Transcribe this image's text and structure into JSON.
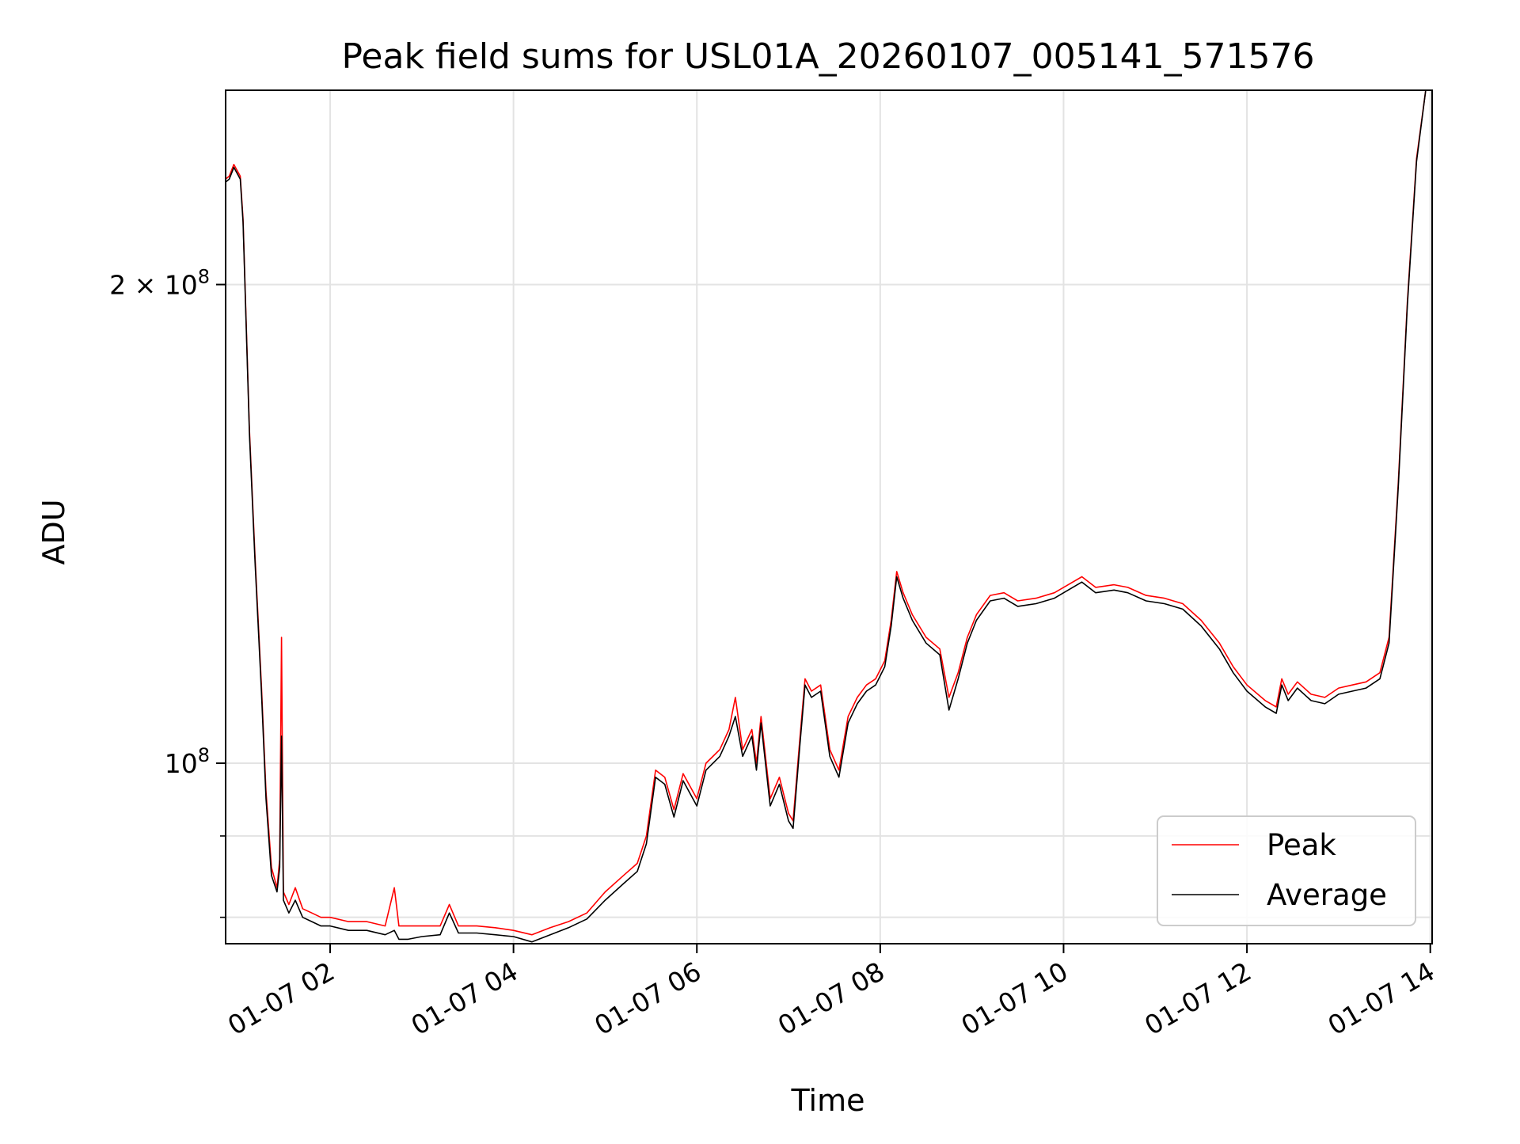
{
  "chart_data": {
    "type": "line",
    "title": "Peak field sums for USL01A_20260107_005141_571576",
    "xlabel": "Time",
    "ylabel": "ADU",
    "y_scale": "log",
    "ylim": [
      77000000.0,
      265000000.0
    ],
    "xlim_hours": [
      0.86,
      14.02
    ],
    "grid": true,
    "legend_position": "lower-right",
    "x_ticks": [
      {
        "hour": 2,
        "label": "01-07 02"
      },
      {
        "hour": 4,
        "label": "01-07 04"
      },
      {
        "hour": 6,
        "label": "01-07 06"
      },
      {
        "hour": 8,
        "label": "01-07 08"
      },
      {
        "hour": 10,
        "label": "01-07 10"
      },
      {
        "hour": 12,
        "label": "01-07 12"
      },
      {
        "hour": 14,
        "label": "01-07 14"
      }
    ],
    "y_major_ticks": [
      {
        "value": 100000000.0,
        "base": "10",
        "exp": "8",
        "prefix": ""
      },
      {
        "value": 200000000.0,
        "base": "10",
        "exp": "8",
        "prefix": "2 × "
      }
    ],
    "y_minor_ticks": [
      80000000.0,
      90000000.0
    ],
    "series": [
      {
        "name": "Peak",
        "color": "#ff0000",
        "points": [
          [
            0.86,
            233000000.0
          ],
          [
            0.9,
            234000000.0
          ],
          [
            0.95,
            238000000.0
          ],
          [
            1.02,
            234000000.0
          ],
          [
            1.05,
            220000000.0
          ],
          [
            1.12,
            162000000.0
          ],
          [
            1.18,
            135000000.0
          ],
          [
            1.25,
            112000000.0
          ],
          [
            1.3,
            96000000.0
          ],
          [
            1.36,
            86000000.0
          ],
          [
            1.42,
            83500000.0
          ],
          [
            1.45,
            87000000.0
          ],
          [
            1.47,
            120000000.0
          ],
          [
            1.49,
            83000000.0
          ],
          [
            1.55,
            81500000.0
          ],
          [
            1.62,
            83500000.0
          ],
          [
            1.7,
            81000000.0
          ],
          [
            1.8,
            80500000.0
          ],
          [
            1.9,
            80000000.0
          ],
          [
            2.0,
            80000000.0
          ],
          [
            2.2,
            79500000.0
          ],
          [
            2.4,
            79500000.0
          ],
          [
            2.6,
            79000000.0
          ],
          [
            2.7,
            83500000.0
          ],
          [
            2.75,
            79000000.0
          ],
          [
            2.85,
            79000000.0
          ],
          [
            3.0,
            79000000.0
          ],
          [
            3.2,
            79000000.0
          ],
          [
            3.3,
            81500000.0
          ],
          [
            3.4,
            79000000.0
          ],
          [
            3.6,
            79000000.0
          ],
          [
            3.8,
            78800000.0
          ],
          [
            4.0,
            78500000.0
          ],
          [
            4.2,
            78000000.0
          ],
          [
            4.4,
            78800000.0
          ],
          [
            4.6,
            79500000.0
          ],
          [
            4.8,
            80500000.0
          ],
          [
            5.0,
            83000000.0
          ],
          [
            5.2,
            85000000.0
          ],
          [
            5.35,
            86500000.0
          ],
          [
            5.45,
            90000000.0
          ],
          [
            5.55,
            99000000.0
          ],
          [
            5.65,
            98000000.0
          ],
          [
            5.75,
            93500000.0
          ],
          [
            5.85,
            98500000.0
          ],
          [
            6.0,
            95000000.0
          ],
          [
            6.1,
            100000000.0
          ],
          [
            6.25,
            102000000.0
          ],
          [
            6.35,
            105000000.0
          ],
          [
            6.42,
            110000000.0
          ],
          [
            6.5,
            102000000.0
          ],
          [
            6.6,
            105000000.0
          ],
          [
            6.65,
            100000000.0
          ],
          [
            6.7,
            107000000.0
          ],
          [
            6.8,
            95000000.0
          ],
          [
            6.9,
            98000000.0
          ],
          [
            7.0,
            93000000.0
          ],
          [
            7.05,
            92000000.0
          ],
          [
            7.12,
            103000000.0
          ],
          [
            7.18,
            113000000.0
          ],
          [
            7.25,
            111000000.0
          ],
          [
            7.35,
            112000000.0
          ],
          [
            7.45,
            102000000.0
          ],
          [
            7.55,
            99000000.0
          ],
          [
            7.65,
            107000000.0
          ],
          [
            7.75,
            110000000.0
          ],
          [
            7.85,
            112000000.0
          ],
          [
            7.95,
            113000000.0
          ],
          [
            8.05,
            116000000.0
          ],
          [
            8.12,
            123000000.0
          ],
          [
            8.18,
            132000000.0
          ],
          [
            8.25,
            128000000.0
          ],
          [
            8.35,
            124000000.0
          ],
          [
            8.5,
            120000000.0
          ],
          [
            8.65,
            118000000.0
          ],
          [
            8.75,
            110000000.0
          ],
          [
            8.85,
            114000000.0
          ],
          [
            8.95,
            120000000.0
          ],
          [
            9.05,
            124000000.0
          ],
          [
            9.2,
            127500000.0
          ],
          [
            9.35,
            128000000.0
          ],
          [
            9.5,
            126500000.0
          ],
          [
            9.7,
            127000000.0
          ],
          [
            9.9,
            128000000.0
          ],
          [
            10.05,
            129500000.0
          ],
          [
            10.2,
            131000000.0
          ],
          [
            10.35,
            129000000.0
          ],
          [
            10.55,
            129500000.0
          ],
          [
            10.7,
            129000000.0
          ],
          [
            10.9,
            127500000.0
          ],
          [
            11.1,
            127000000.0
          ],
          [
            11.3,
            126000000.0
          ],
          [
            11.5,
            123000000.0
          ],
          [
            11.7,
            119000000.0
          ],
          [
            11.85,
            115000000.0
          ],
          [
            12.0,
            112000000.0
          ],
          [
            12.2,
            109500000.0
          ],
          [
            12.32,
            108500000.0
          ],
          [
            12.38,
            113000000.0
          ],
          [
            12.45,
            110500000.0
          ],
          [
            12.55,
            112500000.0
          ],
          [
            12.7,
            110500000.0
          ],
          [
            12.85,
            110000000.0
          ],
          [
            13.0,
            111500000.0
          ],
          [
            13.15,
            112000000.0
          ],
          [
            13.3,
            112500000.0
          ],
          [
            13.45,
            114000000.0
          ],
          [
            13.55,
            120000000.0
          ],
          [
            13.65,
            150000000.0
          ],
          [
            13.75,
            195000000.0
          ],
          [
            13.85,
            240000000.0
          ],
          [
            13.95,
            265000000.0
          ]
        ]
      },
      {
        "name": "Average",
        "color": "#000000",
        "points": [
          [
            0.86,
            232000000.0
          ],
          [
            0.9,
            233000000.0
          ],
          [
            0.95,
            237000000.0
          ],
          [
            1.02,
            233000000.0
          ],
          [
            1.05,
            219000000.0
          ],
          [
            1.12,
            161000000.0
          ],
          [
            1.18,
            134000000.0
          ],
          [
            1.25,
            111000000.0
          ],
          [
            1.3,
            95000000.0
          ],
          [
            1.36,
            85000000.0
          ],
          [
            1.42,
            83000000.0
          ],
          [
            1.45,
            86000000.0
          ],
          [
            1.47,
            104000000.0
          ],
          [
            1.49,
            82000000.0
          ],
          [
            1.55,
            80500000.0
          ],
          [
            1.62,
            82000000.0
          ],
          [
            1.7,
            80000000.0
          ],
          [
            1.8,
            79500000.0
          ],
          [
            1.9,
            79000000.0
          ],
          [
            2.0,
            79000000.0
          ],
          [
            2.2,
            78500000.0
          ],
          [
            2.4,
            78500000.0
          ],
          [
            2.6,
            78000000.0
          ],
          [
            2.7,
            78500000.0
          ],
          [
            2.75,
            77500000.0
          ],
          [
            2.85,
            77500000.0
          ],
          [
            3.0,
            77800000.0
          ],
          [
            3.2,
            78000000.0
          ],
          [
            3.3,
            80500000.0
          ],
          [
            3.4,
            78200000.0
          ],
          [
            3.6,
            78200000.0
          ],
          [
            3.8,
            78000000.0
          ],
          [
            4.0,
            77800000.0
          ],
          [
            4.2,
            77200000.0
          ],
          [
            4.4,
            78000000.0
          ],
          [
            4.6,
            78800000.0
          ],
          [
            4.8,
            79800000.0
          ],
          [
            5.0,
            82000000.0
          ],
          [
            5.2,
            84000000.0
          ],
          [
            5.35,
            85500000.0
          ],
          [
            5.45,
            89000000.0
          ],
          [
            5.55,
            98000000.0
          ],
          [
            5.65,
            97000000.0
          ],
          [
            5.75,
            92500000.0
          ],
          [
            5.85,
            97500000.0
          ],
          [
            6.0,
            94000000.0
          ],
          [
            6.1,
            99000000.0
          ],
          [
            6.25,
            101000000.0
          ],
          [
            6.35,
            104000000.0
          ],
          [
            6.42,
            107000000.0
          ],
          [
            6.5,
            101000000.0
          ],
          [
            6.6,
            104000000.0
          ],
          [
            6.65,
            99000000.0
          ],
          [
            6.7,
            106000000.0
          ],
          [
            6.8,
            94000000.0
          ],
          [
            6.9,
            97000000.0
          ],
          [
            7.0,
            92000000.0
          ],
          [
            7.05,
            91000000.0
          ],
          [
            7.12,
            102000000.0
          ],
          [
            7.18,
            112000000.0
          ],
          [
            7.25,
            110000000.0
          ],
          [
            7.35,
            111000000.0
          ],
          [
            7.45,
            101000000.0
          ],
          [
            7.55,
            98000000.0
          ],
          [
            7.65,
            106000000.0
          ],
          [
            7.75,
            109000000.0
          ],
          [
            7.85,
            111000000.0
          ],
          [
            7.95,
            112000000.0
          ],
          [
            8.05,
            115000000.0
          ],
          [
            8.12,
            122000000.0
          ],
          [
            8.18,
            131000000.0
          ],
          [
            8.25,
            127000000.0
          ],
          [
            8.35,
            123000000.0
          ],
          [
            8.5,
            119000000.0
          ],
          [
            8.65,
            117000000.0
          ],
          [
            8.75,
            108000000.0
          ],
          [
            8.85,
            113000000.0
          ],
          [
            8.95,
            119000000.0
          ],
          [
            9.05,
            123000000.0
          ],
          [
            9.2,
            126500000.0
          ],
          [
            9.35,
            127000000.0
          ],
          [
            9.5,
            125500000.0
          ],
          [
            9.7,
            126000000.0
          ],
          [
            9.9,
            127000000.0
          ],
          [
            10.05,
            128500000.0
          ],
          [
            10.2,
            130000000.0
          ],
          [
            10.35,
            128000000.0
          ],
          [
            10.55,
            128500000.0
          ],
          [
            10.7,
            128000000.0
          ],
          [
            10.9,
            126500000.0
          ],
          [
            11.1,
            126000000.0
          ],
          [
            11.3,
            125000000.0
          ],
          [
            11.5,
            122000000.0
          ],
          [
            11.7,
            118000000.0
          ],
          [
            11.85,
            114000000.0
          ],
          [
            12.0,
            111000000.0
          ],
          [
            12.2,
            108500000.0
          ],
          [
            12.32,
            107500000.0
          ],
          [
            12.38,
            112000000.0
          ],
          [
            12.45,
            109500000.0
          ],
          [
            12.55,
            111500000.0
          ],
          [
            12.7,
            109500000.0
          ],
          [
            12.85,
            109000000.0
          ],
          [
            13.0,
            110500000.0
          ],
          [
            13.15,
            111000000.0
          ],
          [
            13.3,
            111500000.0
          ],
          [
            13.45,
            113000000.0
          ],
          [
            13.55,
            119000000.0
          ],
          [
            13.65,
            149000000.0
          ],
          [
            13.75,
            194000000.0
          ],
          [
            13.85,
            239000000.0
          ],
          [
            13.95,
            265000000.0
          ]
        ]
      }
    ]
  }
}
